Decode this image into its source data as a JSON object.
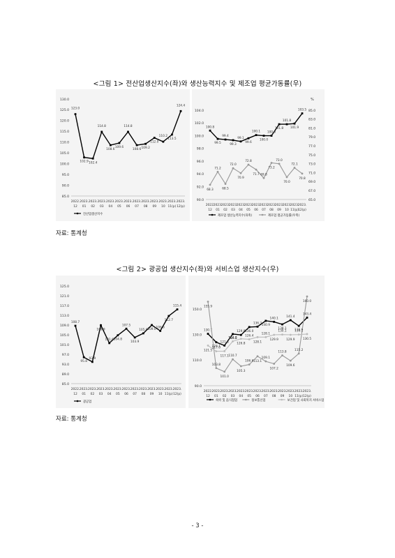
{
  "figure1": {
    "caption": "<그림 1> 전산업생산지수(좌)와 생산능력지수 및 제조업 평균가동률(우)",
    "source": "자료: 통계청"
  },
  "figure2": {
    "caption": "<그림 2> 광공업 생산지수(좌)와 서비스업 생산지수(우)",
    "source": "자료: 통계청"
  },
  "footer": {
    "page": "- 3 -"
  },
  "chart_data": [
    {
      "id": "c1",
      "type": "line",
      "x": [
        [
          "2022.",
          "12"
        ],
        [
          "2023.",
          "01"
        ],
        [
          "2023.",
          "02"
        ],
        [
          "2023.",
          "03"
        ],
        [
          "2023.",
          "04"
        ],
        [
          "2023.",
          "05"
        ],
        [
          "2023.",
          "06"
        ],
        [
          "2023.",
          "07"
        ],
        [
          "2023.",
          "08"
        ],
        [
          "2023.",
          "09"
        ],
        [
          "2023.",
          "10"
        ],
        [
          "2023.",
          "11(p)"
        ],
        [
          "2023.",
          "12(p)"
        ]
      ],
      "ylim": [
        85,
        130
      ],
      "yticks": [
        "85.0",
        "90.0",
        "95.0",
        "100.0",
        "105.0",
        "110.0",
        "115.0",
        "120.0",
        "125.0",
        "130.0"
      ],
      "series": [
        {
          "name": "전산업생산지수",
          "values": [
            123.0,
            102.9,
            102.4,
            114.8,
            108.6,
            109.6,
            114.8,
            108.6,
            109.2,
            112.0,
            110.2,
            113.5,
            124.4
          ],
          "color": "#000000"
        }
      ],
      "legend": "bottom"
    },
    {
      "id": "c2",
      "type": "line",
      "x": [
        [
          "2022.",
          "12"
        ],
        [
          "2023.",
          "01"
        ],
        [
          "2023.",
          "02"
        ],
        [
          "2023.",
          "03"
        ],
        [
          "2023.",
          "04"
        ],
        [
          "2023.",
          "05"
        ],
        [
          "2023.",
          "06"
        ],
        [
          "2023.",
          "07"
        ],
        [
          "2023.",
          "08"
        ],
        [
          "2023.",
          "09"
        ],
        [
          "2023.",
          "10"
        ],
        [
          "2023.",
          "11(p)"
        ],
        [
          "2023.",
          "12(p)"
        ]
      ],
      "ylim": [
        90,
        104
      ],
      "yticks": [
        "90.0",
        "92.0",
        "94.0",
        "96.0",
        "98.0",
        "100.0",
        "102.0",
        "104.0"
      ],
      "y2lim": [
        65,
        85
      ],
      "y2ticks": [
        "65.0",
        "67.0",
        "69.0",
        "71.0",
        "73.0",
        "75.0",
        "77.0",
        "79.0",
        "81.0",
        "83.0",
        "85.0"
      ],
      "y2unit": "%",
      "series": [
        {
          "name": "제조업 생산능력지수(좌축)",
          "values": [
            100.8,
            99.5,
            99.4,
            99.3,
            99.1,
            99.6,
            100.1,
            100.0,
            100.0,
            101.8,
            101.8,
            101.9,
            103.5
          ],
          "axis": "left",
          "color": "#000000"
        },
        {
          "name": "제조업 평균가동률(우축)",
          "values": [
            68.3,
            71.2,
            68.5,
            72.0,
            70.9,
            72.8,
            71.7,
            69.8,
            73.2,
            73.0,
            70.0,
            72.1,
            70.8
          ],
          "axis": "right",
          "color": "#999999"
        }
      ],
      "legend": "bottom"
    },
    {
      "id": "c3",
      "type": "line",
      "x": [
        [
          "2022.",
          "12"
        ],
        [
          "2023.",
          "01"
        ],
        [
          "2023.",
          "02"
        ],
        [
          "2023.",
          "03"
        ],
        [
          "2023.",
          "04"
        ],
        [
          "2023.",
          "05"
        ],
        [
          "2023.",
          "06"
        ],
        [
          "2023.",
          "07"
        ],
        [
          "2023.",
          "08"
        ],
        [
          "2023.",
          "09"
        ],
        [
          "2023.",
          "10"
        ],
        [
          "2023.",
          "11(p)"
        ],
        [
          "2023.",
          "12(p)"
        ]
      ],
      "ylim": [
        85,
        125
      ],
      "yticks": [
        "85.0",
        "89.0",
        "93.0",
        "97.0",
        "101.0",
        "105.0",
        "109.0",
        "113.0",
        "117.0",
        "121.0",
        "125.0"
      ],
      "series": [
        {
          "name": "광공업",
          "values": [
            108.7,
            95.8,
            93.9,
            108.9,
            101.6,
            104.8,
            107.5,
            103.9,
            105.6,
            109.0,
            106.6,
            112.7,
            115.4
          ],
          "color": "#000000"
        }
      ],
      "legend": "bottom"
    },
    {
      "id": "c4",
      "type": "line",
      "x": [
        [
          "2022.",
          "12"
        ],
        [
          "2023.",
          "01"
        ],
        [
          "2023.",
          "02"
        ],
        [
          "2023.",
          "03"
        ],
        [
          "2023.",
          "04"
        ],
        [
          "2023.",
          "05"
        ],
        [
          "2023.",
          "06"
        ],
        [
          "2023.",
          "07"
        ],
        [
          "2023.",
          "08"
        ],
        [
          "2023.",
          "09"
        ],
        [
          "2023.",
          "10"
        ],
        [
          "2023.",
          "11(p)"
        ],
        [
          "2023.",
          "12(p)"
        ]
      ],
      "ylim": [
        90,
        160
      ],
      "yticks": [
        "90.0",
        "110.0",
        "130.0",
        "150.0"
      ],
      "series": [
        {
          "name": "숙박 및 음식점업",
          "values": [
            130.7,
            124.1,
            121.5,
            130.5,
            129.8,
            136.0,
            136.3,
            140.9,
            140.1,
            138.1,
            141.4,
            136.9,
            143.4
          ],
          "color": "#000000"
        },
        {
          "name": "정보통신업",
          "values": [
            155.9,
            103.8,
            101.0,
            110.7,
            105.3,
            106.6,
            113.1,
            109.1,
            107.2,
            113.8,
            109.6,
            115.2,
            160.0
          ],
          "color": "#999999"
        },
        {
          "name": "보건업 및 사회복지 서비스업",
          "values": [
            121.5,
            117.0,
            117.1,
            124.8,
            126.8,
            126.4,
            128.1,
            128.1,
            129.9,
            130.1,
            129.9,
            130.1,
            130.5
          ],
          "color": "#bbbbbb"
        }
      ],
      "legend": "bottom"
    }
  ]
}
